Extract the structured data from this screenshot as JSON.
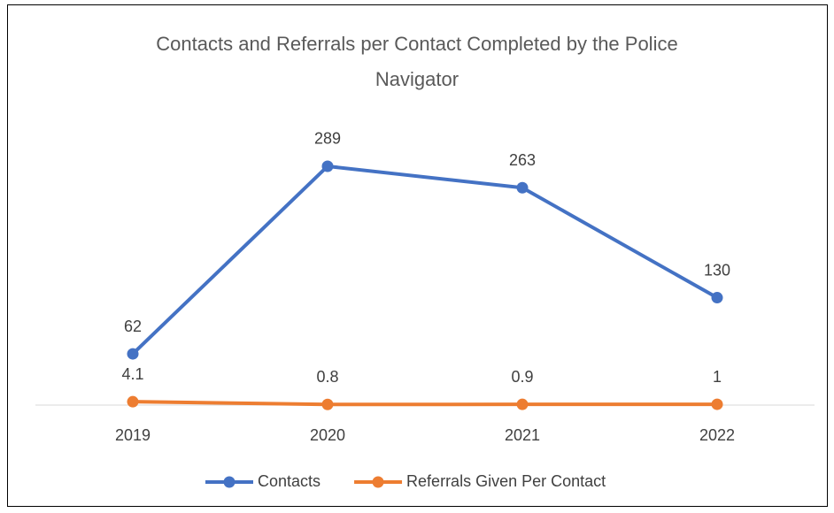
{
  "chart_data": {
    "type": "line",
    "title": "Contacts and Referrals per Contact Completed by the Police Navigator",
    "categories": [
      "2019",
      "2020",
      "2021",
      "2022"
    ],
    "series": [
      {
        "name": "Contacts",
        "color": "#4472c4",
        "values": [
          62,
          289,
          263,
          130
        ]
      },
      {
        "name": "Referrals Given Per Contact",
        "color": "#ed7d31",
        "values": [
          4.1,
          0.8,
          0.9,
          1
        ]
      }
    ],
    "ylim": [
      0,
      350
    ]
  }
}
